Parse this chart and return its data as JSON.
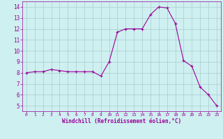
{
  "x": [
    0,
    1,
    2,
    3,
    4,
    5,
    6,
    7,
    8,
    9,
    10,
    11,
    12,
    13,
    14,
    15,
    16,
    17,
    18,
    19,
    20,
    21,
    22,
    23
  ],
  "y": [
    8.0,
    8.1,
    8.1,
    8.3,
    8.2,
    8.1,
    8.1,
    8.1,
    8.1,
    7.7,
    9.0,
    11.7,
    12.0,
    12.0,
    12.0,
    13.3,
    14.0,
    13.9,
    12.5,
    9.1,
    8.6,
    6.7,
    6.0,
    5.0
  ],
  "line_color": "#990099",
  "marker": "+",
  "marker_size": 3,
  "marker_linewidth": 0.8,
  "bg_color": "#cff0f0",
  "grid_color": "#aacccc",
  "xlabel": "Windchill (Refroidissement éolien,°C)",
  "xlabel_color": "#990099",
  "tick_color": "#990099",
  "xlim": [
    -0.5,
    23.5
  ],
  "ylim": [
    4.5,
    14.5
  ],
  "yticks": [
    5,
    6,
    7,
    8,
    9,
    10,
    11,
    12,
    13,
    14
  ],
  "xticks": [
    0,
    1,
    2,
    3,
    4,
    5,
    6,
    7,
    8,
    9,
    10,
    11,
    12,
    13,
    14,
    15,
    16,
    17,
    18,
    19,
    20,
    21,
    22,
    23
  ]
}
